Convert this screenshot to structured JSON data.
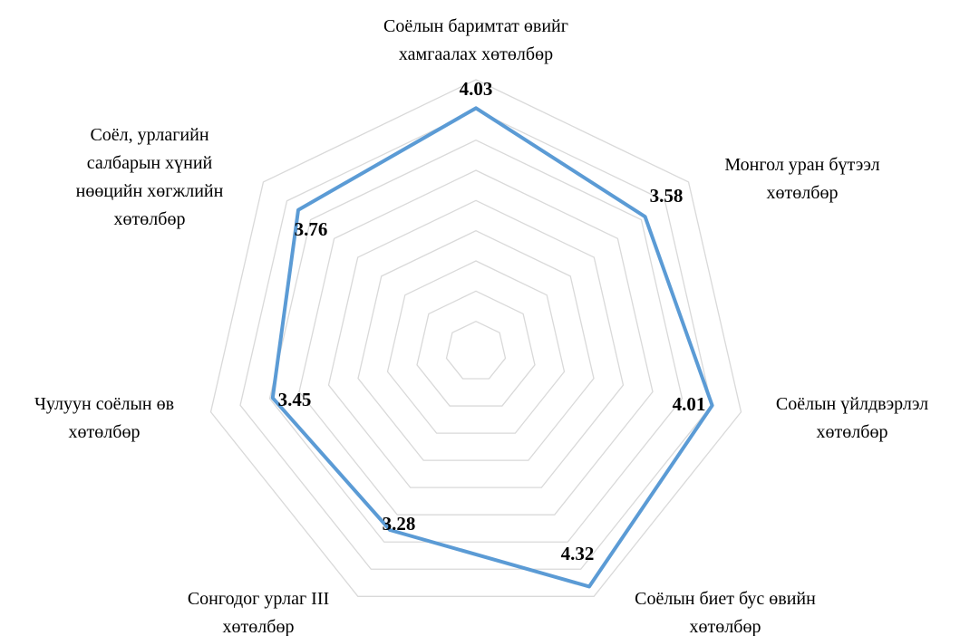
{
  "chart_data": {
    "type": "radar",
    "categories": [
      "Соёлын баримтат өвийг\nхамгаалах хөтөлбөр",
      "Монгол уран бүтээл\nхөтөлбөр",
      "Соёлын үйлдвэрлэл\nхөтөлбөр",
      "Соёлын биет бус өвийн\nхөтөлбөр",
      "Сонгодог урлаг III\nхөтөлбөр",
      "Чулуун соёлын өв\nхөтөлбөр",
      "Соёл, урлагийн\nсалбарын хүний\nнөөцийн хөгжлийн\nхөтөлбөр"
    ],
    "values": [
      4.03,
      3.58,
      4.01,
      4.32,
      3.28,
      3.45,
      3.76
    ],
    "color": "#5b9bd5",
    "ylim": [
      0,
      4.5
    ],
    "yticks": [
      0,
      0.5,
      1,
      1.5,
      2,
      2.5,
      3,
      3.5,
      4,
      4.5
    ],
    "grid": true
  }
}
